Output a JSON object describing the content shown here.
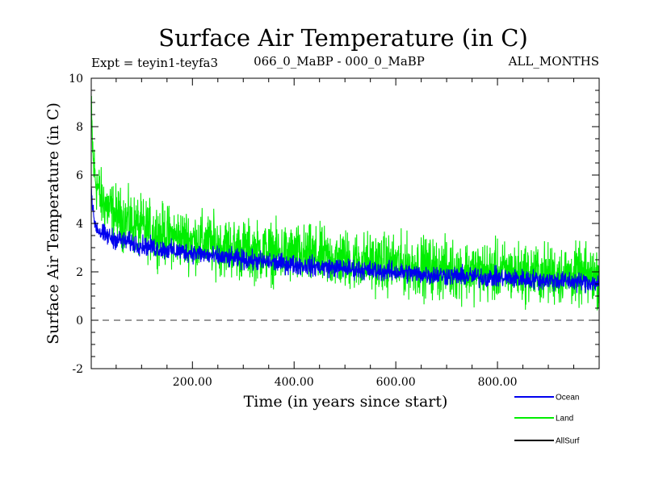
{
  "chart_data": {
    "type": "line",
    "title": "Surface Air Temperature (in C)",
    "subtitle_left": "Expt = teyin1-teyfa3",
    "subtitle_center": "066_0_MaBP - 000_0_MaBP",
    "subtitle_right": "ALL_MONTHS",
    "xlabel": "Time (in years since start)",
    "ylabel": "Surface Air Temperature (in C)",
    "xlim": [
      1,
      1000
    ],
    "ylim": [
      -2,
      10
    ],
    "x_ticks": [
      200,
      400,
      600,
      800
    ],
    "x_tick_labels": [
      "200.00",
      "400.00",
      "600.00",
      "800.00"
    ],
    "y_ticks": [
      -2,
      0,
      2,
      4,
      6,
      8,
      10
    ],
    "y_tick_labels": [
      "-2",
      "0",
      "2",
      "4",
      "6",
      "8",
      "10"
    ],
    "reference_line": 0,
    "series": [
      {
        "name": "Land",
        "color": "#00ee00",
        "x": [
          1,
          5,
          10,
          20,
          40,
          60,
          80,
          100,
          150,
          200,
          250,
          300,
          350,
          400,
          450,
          500,
          550,
          600,
          650,
          700,
          750,
          800,
          850,
          900,
          950,
          1000
        ],
        "values": [
          8.5,
          6.5,
          5.8,
          5.0,
          4.5,
          4.2,
          4.0,
          3.8,
          3.5,
          3.3,
          3.1,
          2.9,
          2.8,
          2.7,
          2.6,
          2.5,
          2.4,
          2.3,
          2.2,
          2.1,
          2.05,
          2.0,
          1.95,
          1.9,
          1.85,
          1.8
        ],
        "variability": 1.8
      },
      {
        "name": "Ocean",
        "color": "#0000ee",
        "x": [
          1,
          5,
          10,
          20,
          40,
          60,
          80,
          100,
          150,
          200,
          250,
          300,
          350,
          400,
          450,
          500,
          550,
          600,
          650,
          700,
          750,
          800,
          850,
          900,
          950,
          1000
        ],
        "values": [
          5.5,
          4.3,
          3.9,
          3.6,
          3.4,
          3.3,
          3.2,
          3.1,
          2.9,
          2.8,
          2.6,
          2.5,
          2.4,
          2.3,
          2.2,
          2.15,
          2.05,
          2.0,
          1.9,
          1.85,
          1.8,
          1.75,
          1.7,
          1.65,
          1.6,
          1.55
        ],
        "variability": 0.6
      },
      {
        "name": "AllSurf",
        "color": "#000000",
        "x": [],
        "values": []
      }
    ],
    "legend": [
      {
        "label": "Ocean",
        "color": "#0000ee"
      },
      {
        "label": "Land",
        "color": "#00ee00"
      },
      {
        "label": "AllSurf",
        "color": "#000000"
      }
    ],
    "legend_position": "bottom-right"
  }
}
